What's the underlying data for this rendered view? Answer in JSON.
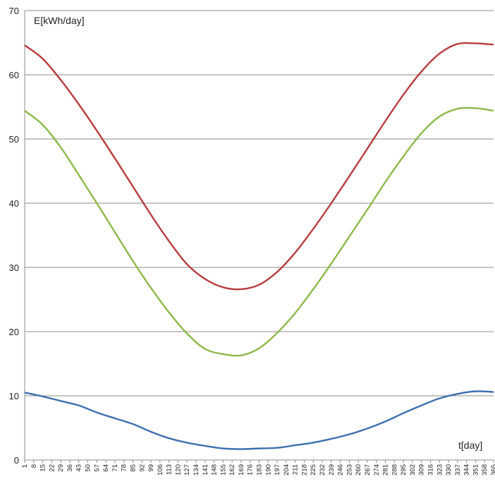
{
  "chart_data": {
    "type": "line",
    "title": "",
    "ylabel": "E[kWh/day]",
    "xlabel": "t[day]",
    "ylim": [
      0,
      70
    ],
    "xlim": [
      1,
      365
    ],
    "yticks": [
      0,
      10,
      20,
      30,
      40,
      50,
      60,
      70
    ],
    "xtick_step": 7,
    "grid": "horizontal",
    "legend": "none",
    "series": [
      {
        "color": "#B83B3B",
        "x": [
          1,
          15,
          29,
          43,
          57,
          71,
          85,
          99,
          113,
          127,
          141,
          155,
          169,
          183,
          197,
          211,
          225,
          239,
          253,
          267,
          281,
          295,
          309,
          323,
          337,
          351,
          365
        ],
        "values": [
          64.6,
          62.5,
          59.2,
          55.4,
          51.3,
          47.0,
          42.6,
          38.2,
          34.1,
          30.5,
          28.2,
          26.9,
          26.6,
          27.3,
          29.3,
          32.3,
          36.0,
          40.0,
          44.2,
          48.5,
          52.8,
          56.9,
          60.5,
          63.3,
          64.8,
          64.9,
          64.7
        ]
      },
      {
        "color": "#8DB84A",
        "x": [
          1,
          15,
          29,
          43,
          57,
          71,
          85,
          99,
          113,
          127,
          141,
          155,
          169,
          183,
          197,
          211,
          225,
          239,
          253,
          267,
          281,
          295,
          309,
          323,
          337,
          351,
          365
        ],
        "values": [
          54.4,
          52.2,
          48.7,
          44.4,
          40.0,
          35.5,
          31.0,
          26.8,
          23.0,
          19.7,
          17.3,
          16.5,
          16.3,
          17.4,
          19.8,
          22.9,
          26.6,
          30.6,
          34.8,
          39.0,
          43.3,
          47.3,
          50.9,
          53.5,
          54.7,
          54.8,
          54.4
        ]
      },
      {
        "color": "#3D6FB0",
        "x": [
          1,
          15,
          29,
          43,
          57,
          71,
          85,
          99,
          113,
          127,
          141,
          155,
          169,
          183,
          197,
          211,
          225,
          239,
          253,
          267,
          281,
          295,
          309,
          323,
          337,
          351,
          365
        ],
        "values": [
          10.5,
          9.9,
          9.2,
          8.5,
          7.4,
          6.5,
          5.6,
          4.4,
          3.4,
          2.7,
          2.2,
          1.8,
          1.7,
          1.8,
          1.9,
          2.3,
          2.7,
          3.3,
          4.0,
          4.9,
          6.0,
          7.3,
          8.5,
          9.6,
          10.3,
          10.7,
          10.6
        ]
      }
    ]
  }
}
